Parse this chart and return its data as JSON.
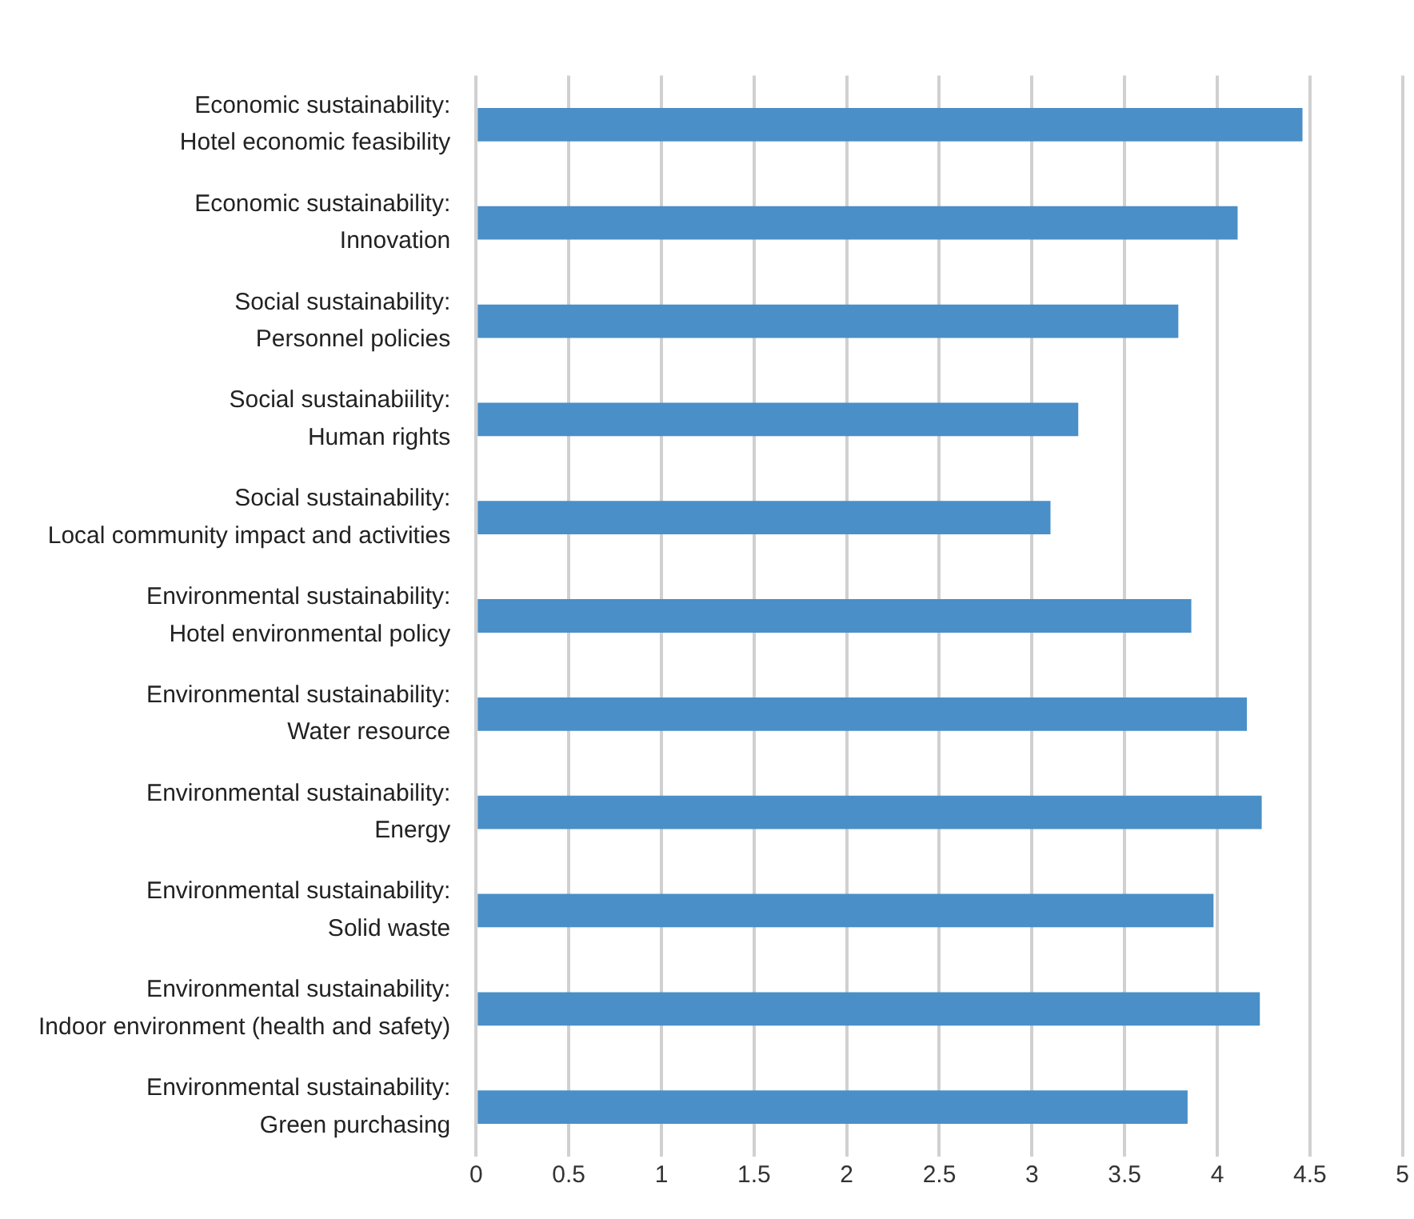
{
  "chart_data": {
    "type": "bar",
    "orientation": "horizontal",
    "categories": [
      "Economic sustainability:\nHotel economic feasibility",
      "Economic sustainability:\nInnovation",
      "Social sustainability:\nPersonnel policies",
      "Social sustainabiility:\nHuman rights",
      "Social sustainability:\nLocal community impact and activities",
      "Environmental sustainability:\nHotel environmental policy",
      "Environmental sustainability:\nWater resource",
      "Environmental sustainability:\nEnergy",
      "Environmental sustainability:\nSolid waste",
      "Environmental sustainability:\nIndoor environment (health and safety)",
      "Environmental sustainability:\nGreen purchasing"
    ],
    "values": [
      4.46,
      4.11,
      3.79,
      3.25,
      3.1,
      3.86,
      4.16,
      4.24,
      3.98,
      4.23,
      3.84
    ],
    "color": "#4a8fc7",
    "xlim": [
      0,
      5
    ],
    "xticks": [
      0,
      0.5,
      1,
      1.5,
      2,
      2.5,
      3,
      3.5,
      4,
      4.5,
      5
    ],
    "grid": "x",
    "legend": false
  }
}
